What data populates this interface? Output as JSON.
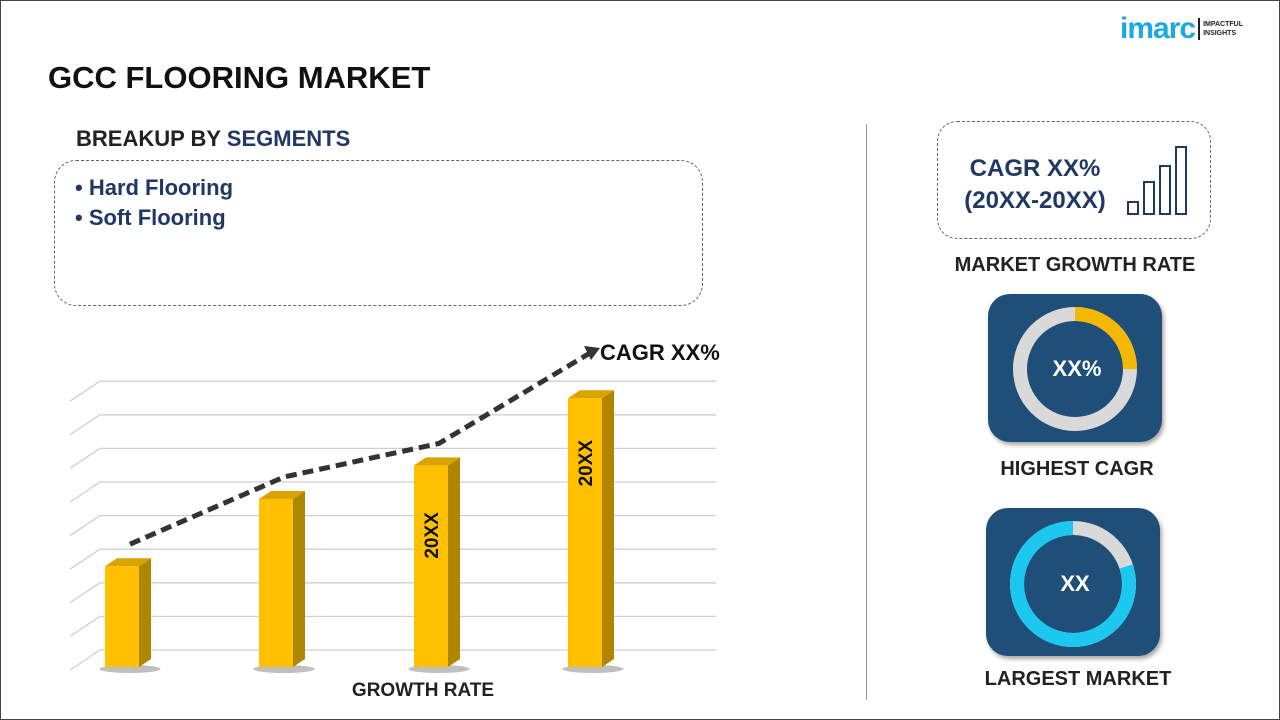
{
  "header": {
    "title": "GCC FLOORING MARKET",
    "logo_word": "imarc",
    "logo_tagline_1": "IMPACTFUL",
    "logo_tagline_2": "INSIGHTS"
  },
  "segments": {
    "heading_prefix": "BREAKUP BY ",
    "heading_highlight": "SEGMENTS",
    "items": [
      "• Hard Flooring",
      "• Soft Flooring"
    ]
  },
  "side": {
    "cagr_line1": "CAGR XX%",
    "cagr_line2": "(20XX-20XX)",
    "growth_label": "MARKET GROWTH RATE",
    "highest_value": "XX%",
    "highest_label": "HIGHEST CAGR",
    "highest_fraction": 0.25,
    "largest_value": "XX",
    "largest_label": "LARGEST MARKET",
    "largest_fraction": 0.8,
    "colors": {
      "tile": "#1f4e79",
      "gold": "#f5b800",
      "cyan": "#1cc8f0",
      "ring": "#d9d9d9"
    }
  },
  "chart_data": {
    "type": "bar",
    "title": "CAGR XX%",
    "xlabel": "GROWTH RATE",
    "categories": [
      "",
      "",
      "",
      ""
    ],
    "bar_labels": [
      "",
      "",
      "20XX",
      "20XX"
    ],
    "values": [
      3,
      5,
      6,
      8
    ],
    "trend_line": true,
    "grid": true,
    "ylim": [
      0,
      8.5
    ],
    "bar_color": "#ffc000"
  }
}
